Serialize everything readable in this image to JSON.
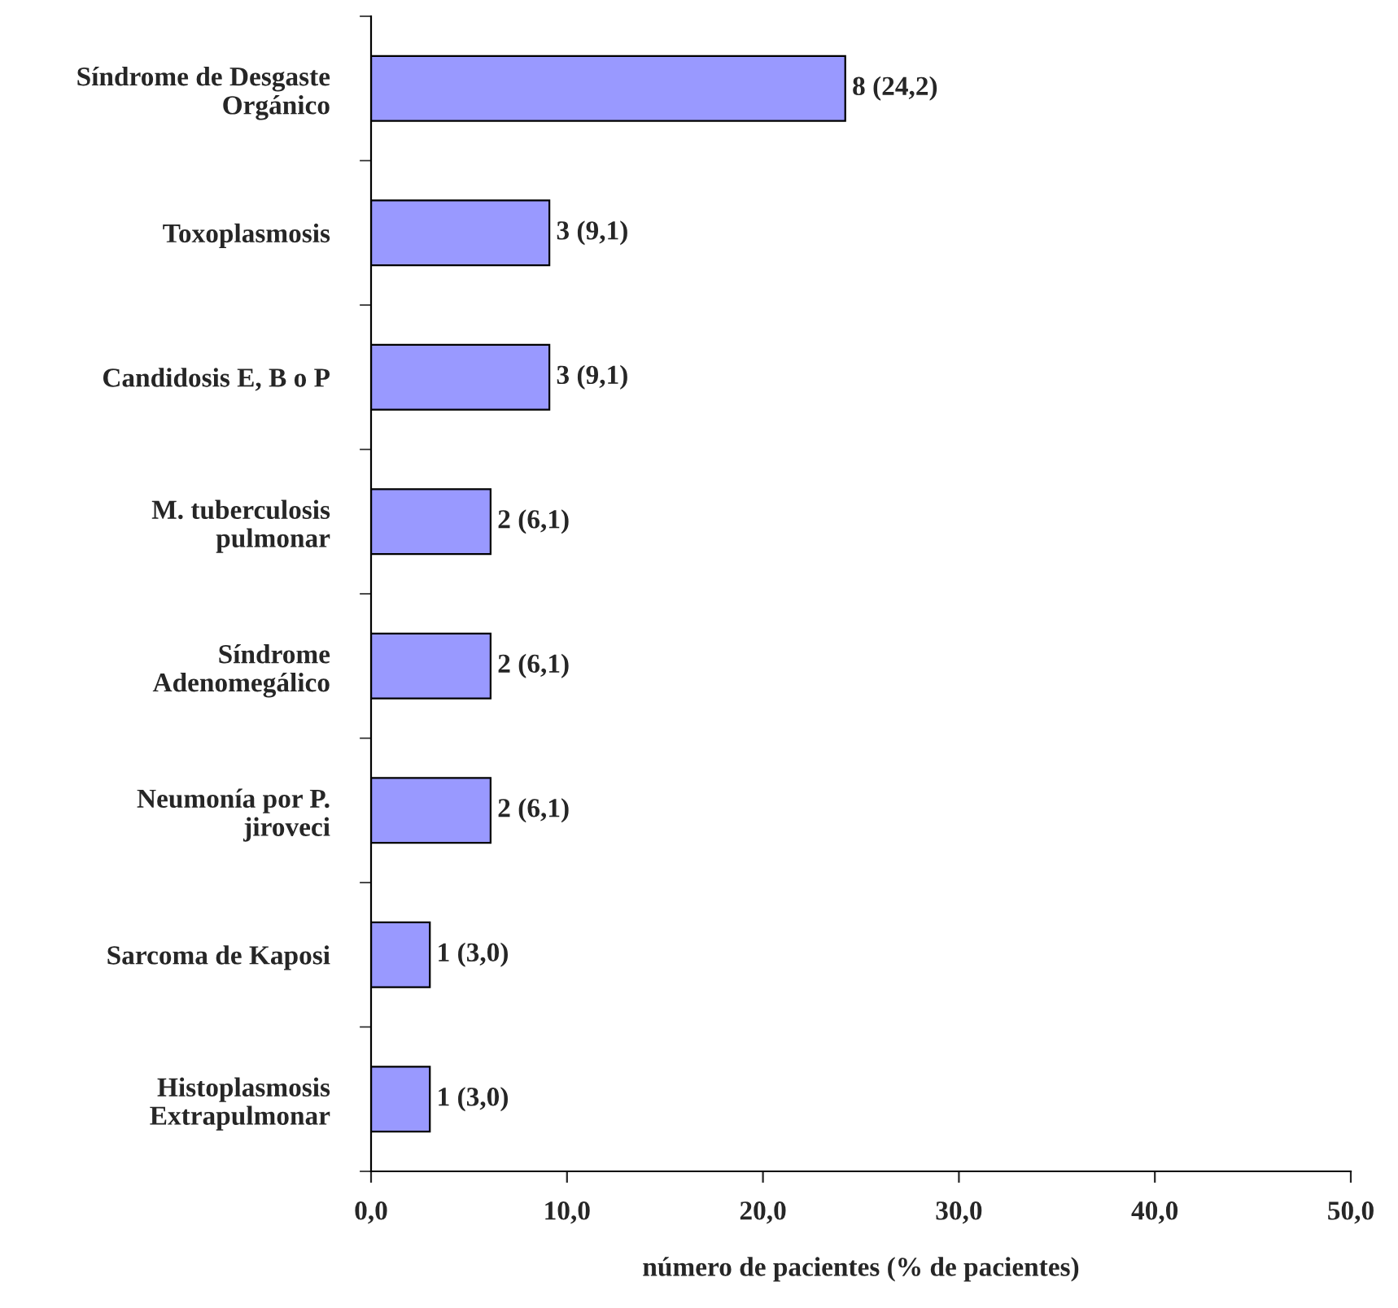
{
  "chart_data": {
    "type": "bar",
    "orientation": "horizontal",
    "xlabel": "número de pacientes (% de pacientes)",
    "categories": [
      "Síndrome de Desgaste\nOrgánico",
      "Toxoplasmosis",
      "Candidosis E, B o P",
      "M. tuberculosis\npulmonar",
      "Síndrome\nAdenomegálico",
      "Neumonía por P.\njiroveci",
      "Sarcoma de Kaposi",
      "Histoplasmosis\nExtrapulmonar"
    ],
    "values": [
      24.2,
      9.1,
      9.1,
      6.1,
      6.1,
      6.1,
      3.0,
      3.0
    ],
    "value_labels": [
      "8 (24,2)",
      "3 (9,1)",
      "3 (9,1)",
      "2 (6,1)",
      "2 (6,1)",
      "2 (6,1)",
      "1 (3,0)",
      "1 (3,0)"
    ],
    "color": "#9999ff",
    "xlim": [
      0,
      50
    ],
    "xticks": [
      {
        "value": 0,
        "label": "0,0"
      },
      {
        "value": 10,
        "label": "10,0"
      },
      {
        "value": 20,
        "label": "20,0"
      },
      {
        "value": 30,
        "label": "30,0"
      },
      {
        "value": 40,
        "label": "40,0"
      },
      {
        "value": 50,
        "label": "50,0"
      }
    ],
    "grid": false,
    "legend": false
  }
}
